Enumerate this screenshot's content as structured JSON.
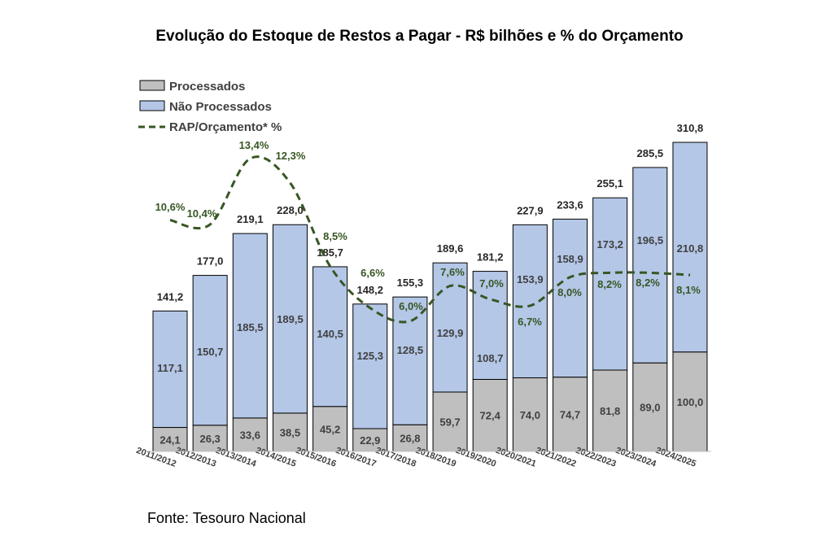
{
  "chart_data": {
    "type": "bar",
    "stacked": true,
    "title": "Evolução do Estoque de Restos a Pagar - R$ bilhões e % do Orçamento",
    "categories": [
      "2011/2012",
      "2012/2013",
      "2013/2014",
      "2014/2015",
      "2015/2016",
      "2016/2017",
      "2017/2018",
      "2018/2019",
      "2019/2020",
      "2020/2021",
      "2021/2022",
      "2022/2023",
      "2023/2024",
      "2024/2025"
    ],
    "series": [
      {
        "name": "Processados",
        "type": "bar",
        "color": "#bfbfbf",
        "values": [
          24.1,
          26.3,
          33.6,
          38.5,
          45.2,
          22.9,
          26.8,
          59.7,
          72.4,
          74.0,
          74.7,
          81.8,
          89.0,
          100.0
        ],
        "labels": [
          "24,1",
          "26,3",
          "33,6",
          "38,5",
          "45,2",
          "22,9",
          "26,8",
          "59,7",
          "72,4",
          "74,0",
          "74,7",
          "81,8",
          "89,0",
          "100,0"
        ]
      },
      {
        "name": "Não Processados",
        "type": "bar",
        "color": "#b4c7e7",
        "values": [
          117.1,
          150.7,
          185.5,
          189.5,
          140.5,
          125.3,
          128.5,
          129.9,
          108.7,
          153.9,
          158.9,
          173.2,
          196.5,
          210.8
        ],
        "labels": [
          "117,1",
          "150,7",
          "185,5",
          "189,5",
          "140,5",
          "125,3",
          "128,5",
          "129,9",
          "108,7",
          "153,9",
          "158,9",
          "173,2",
          "196,5",
          "210,8"
        ]
      },
      {
        "name": "RAP/Orçamento* %",
        "type": "line",
        "style": "dashed",
        "axis": "secondary",
        "color": "#375623",
        "values": [
          10.6,
          10.4,
          13.4,
          12.3,
          8.5,
          6.6,
          6.0,
          7.6,
          7.0,
          6.7,
          8.0,
          8.2,
          8.2,
          8.1
        ],
        "labels": [
          "10,6%",
          "10,4%",
          "13,4%",
          "12,3%",
          "8,5%",
          "6,6%",
          "6,0%",
          "7,6%",
          "7,0%",
          "6,7%",
          "8,0%",
          "8,2%",
          "8,2%",
          "8,1%"
        ]
      }
    ],
    "totals": [
      141.2,
      177.0,
      219.1,
      228.0,
      185.7,
      148.2,
      155.3,
      189.6,
      181.2,
      227.9,
      233.6,
      255.1,
      285.5,
      310.8
    ],
    "total_labels": [
      "141,2",
      "177,0",
      "219,1",
      "228,0",
      "185,7",
      "148,2",
      "155,3",
      "189,6",
      "181,2",
      "227,9",
      "233,6",
      "255,1",
      "285,5",
      "310,8"
    ],
    "legend_position": "top-left",
    "grid": false,
    "source": "Fonte: Tesouro Nacional"
  }
}
